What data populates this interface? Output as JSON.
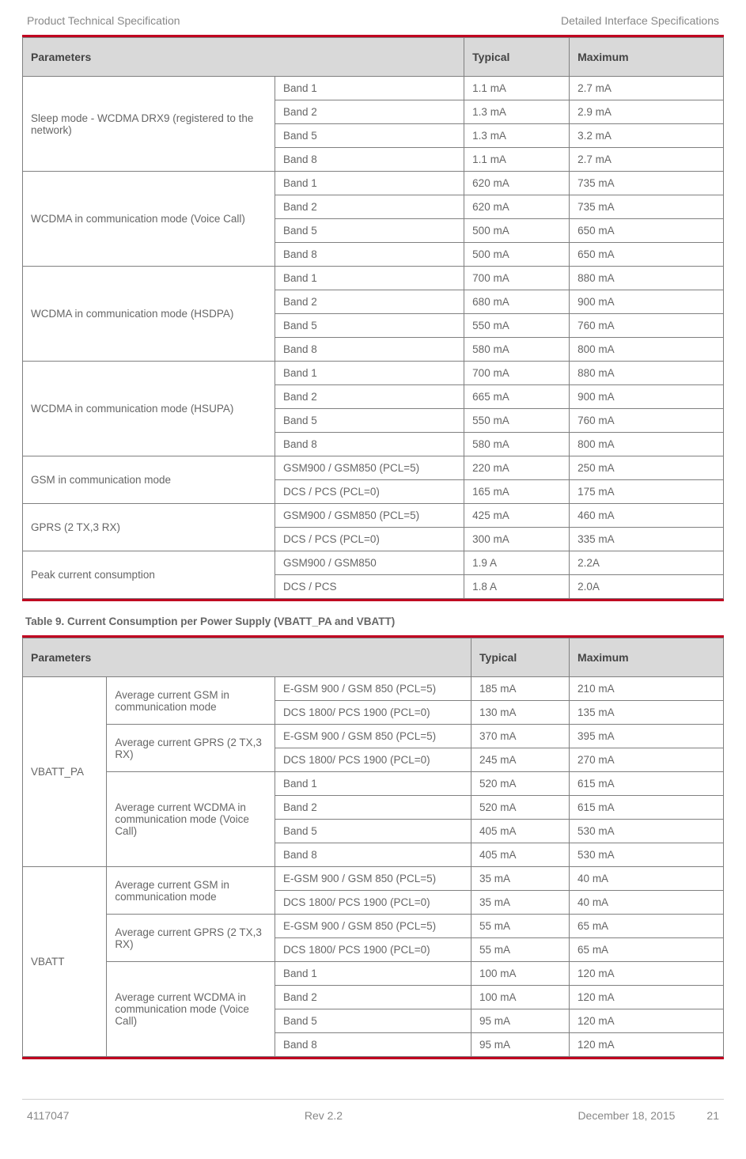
{
  "header": {
    "left": "Product Technical Specification",
    "right": "Detailed Interface Specifications"
  },
  "footer": {
    "doc": "4117047",
    "rev": "Rev 2.2",
    "date": "December 18, 2015",
    "page": "21"
  },
  "table1": {
    "headers": [
      "Parameters",
      "Typical",
      "Maximum"
    ],
    "groups": [
      {
        "label": "Sleep mode - WCDMA DRX9 (registered to the network)",
        "rows": [
          {
            "band": "Band 1",
            "typ": "1.1 mA",
            "max": "2.7 mA"
          },
          {
            "band": "Band 2",
            "typ": "1.3 mA",
            "max": "2.9 mA"
          },
          {
            "band": "Band 5",
            "typ": "1.3 mA",
            "max": "3.2 mA"
          },
          {
            "band": "Band 8",
            "typ": "1.1 mA",
            "max": "2.7 mA"
          }
        ]
      },
      {
        "label": "WCDMA in communication mode (Voice Call)",
        "rows": [
          {
            "band": "Band 1",
            "typ": "620 mA",
            "max": "735 mA"
          },
          {
            "band": "Band 2",
            "typ": "620 mA",
            "max": "735 mA"
          },
          {
            "band": "Band 5",
            "typ": "500 mA",
            "max": "650 mA"
          },
          {
            "band": "Band 8",
            "typ": "500 mA",
            "max": "650 mA"
          }
        ]
      },
      {
        "label": "WCDMA in communication mode (HSDPA)",
        "rows": [
          {
            "band": "Band 1",
            "typ": "700 mA",
            "max": "880 mA"
          },
          {
            "band": "Band 2",
            "typ": "680 mA",
            "max": "900 mA"
          },
          {
            "band": "Band 5",
            "typ": "550 mA",
            "max": "760 mA"
          },
          {
            "band": "Band 8",
            "typ": "580 mA",
            "max": "800 mA"
          }
        ]
      },
      {
        "label": "WCDMA in communication mode (HSUPA)",
        "rows": [
          {
            "band": "Band 1",
            "typ": "700 mA",
            "max": "880 mA"
          },
          {
            "band": "Band 2",
            "typ": "665 mA",
            "max": "900 mA"
          },
          {
            "band": "Band 5",
            "typ": "550 mA",
            "max": "760 mA"
          },
          {
            "band": "Band 8",
            "typ": "580 mA",
            "max": "800 mA"
          }
        ]
      },
      {
        "label": "GSM in communication mode",
        "rows": [
          {
            "band": "GSM900 / GSM850 (PCL=5)",
            "typ": "220 mA",
            "max": "250 mA"
          },
          {
            "band": "DCS / PCS (PCL=0)",
            "typ": "165 mA",
            "max": "175 mA"
          }
        ]
      },
      {
        "label": "GPRS (2 TX,3 RX)",
        "rows": [
          {
            "band": "GSM900 / GSM850 (PCL=5)",
            "typ": "425 mA",
            "max": "460 mA"
          },
          {
            "band": "DCS / PCS (PCL=0)",
            "typ": "300 mA",
            "max": "335 mA"
          }
        ]
      },
      {
        "label": "Peak current consumption",
        "rows": [
          {
            "band": "GSM900 / GSM850",
            "typ": "1.9 A",
            "max": "2.2A"
          },
          {
            "band": "DCS / PCS",
            "typ": "1.8 A",
            "max": "2.0A"
          }
        ]
      }
    ]
  },
  "table2": {
    "caption": "Table 9.      Current Consumption per Power Supply (VBATT_PA and VBATT)",
    "headers": [
      "Parameters",
      "Typical",
      "Maximum"
    ],
    "sections": [
      {
        "supply": "VBATT_PA",
        "groups": [
          {
            "label": "Average current GSM in communication mode",
            "rows": [
              {
                "band": "E-GSM 900 / GSM 850 (PCL=5)",
                "typ": "185 mA",
                "max": "210 mA"
              },
              {
                "band": "DCS 1800/ PCS 1900 (PCL=0)",
                "typ": "130 mA",
                "max": "135 mA"
              }
            ]
          },
          {
            "label": "Average current GPRS (2 TX,3 RX)",
            "rows": [
              {
                "band": "E-GSM 900 / GSM 850 (PCL=5)",
                "typ": "370 mA",
                "max": "395 mA"
              },
              {
                "band": "DCS 1800/ PCS 1900 (PCL=0)",
                "typ": "245 mA",
                "max": "270 mA"
              }
            ]
          },
          {
            "label": "Average current WCDMA in communication mode (Voice Call)",
            "rows": [
              {
                "band": "Band 1",
                "typ": "520 mA",
                "max": "615 mA"
              },
              {
                "band": "Band 2",
                "typ": "520 mA",
                "max": "615 mA"
              },
              {
                "band": "Band 5",
                "typ": "405 mA",
                "max": "530 mA"
              },
              {
                "band": "Band 8",
                "typ": "405 mA",
                "max": "530 mA"
              }
            ]
          }
        ]
      },
      {
        "supply": "VBATT",
        "groups": [
          {
            "label": "Average current GSM in communication mode",
            "rows": [
              {
                "band": "E-GSM 900 / GSM 850 (PCL=5)",
                "typ": "35 mA",
                "max": "40 mA"
              },
              {
                "band": "DCS 1800/ PCS 1900 (PCL=0)",
                "typ": "35 mA",
                "max": "40 mA"
              }
            ]
          },
          {
            "label": "Average current GPRS (2 TX,3 RX)",
            "rows": [
              {
                "band": "E-GSM 900 / GSM 850 (PCL=5)",
                "typ": "55 mA",
                "max": "65 mA"
              },
              {
                "band": "DCS 1800/ PCS 1900 (PCL=0)",
                "typ": "55 mA",
                "max": "65 mA"
              }
            ]
          },
          {
            "label": "Average current WCDMA in communication mode (Voice Call)",
            "rows": [
              {
                "band": "Band 1",
                "typ": "100 mA",
                "max": "120 mA"
              },
              {
                "band": "Band 2",
                "typ": "100 mA",
                "max": "120 mA"
              },
              {
                "band": "Band 5",
                "typ": "95 mA",
                "max": "120 mA"
              },
              {
                "band": "Band 8",
                "typ": "95 mA",
                "max": "120 mA"
              }
            ]
          }
        ]
      }
    ]
  }
}
